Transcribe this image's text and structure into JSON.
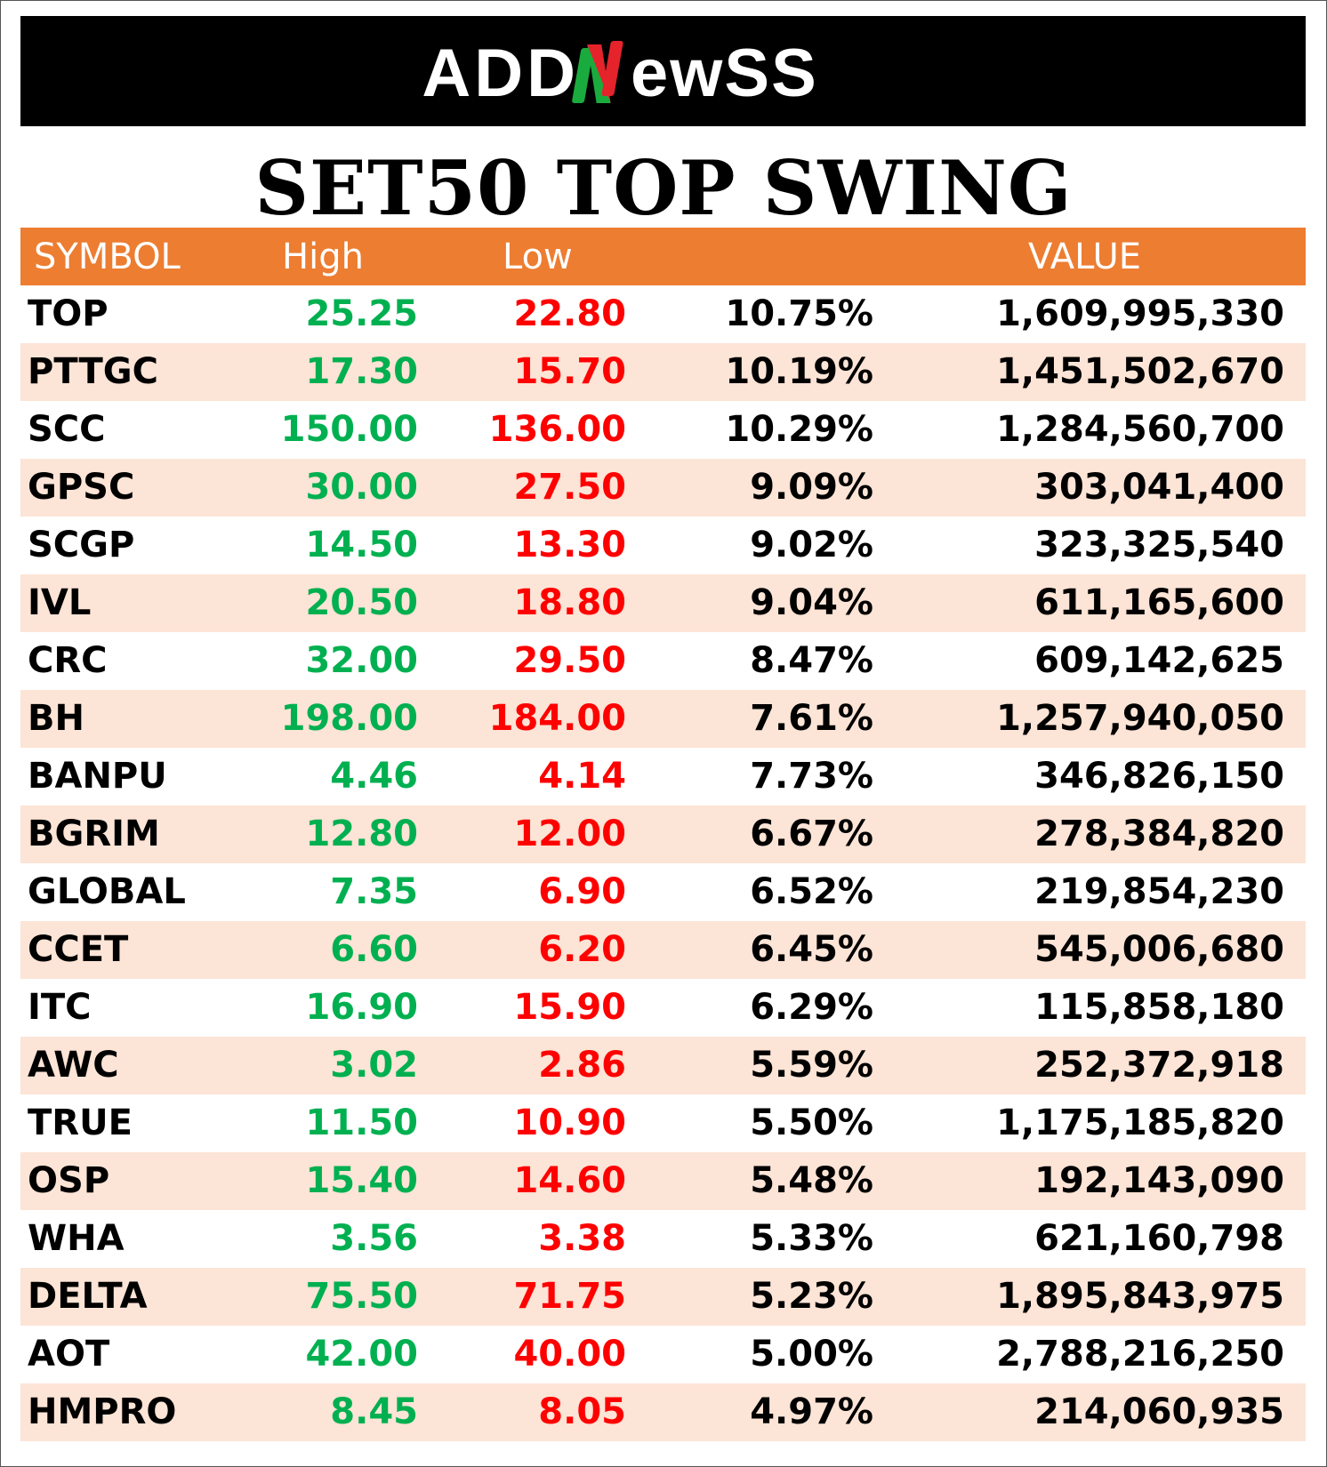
{
  "brand": {
    "left": "ADD",
    "right": "ewSS",
    "accent_colors": [
      "#1AAB3E",
      "#E5232B"
    ]
  },
  "title": "SET50 TOP SWING",
  "table": {
    "headers": {
      "symbol": "SYMBOL",
      "high": "High",
      "low": "Low",
      "pct": "",
      "value": "VALUE"
    },
    "colors": {
      "header_bg": "#ED7D31",
      "alt_row_bg": "#FCE4D6",
      "high": "#00B050",
      "low": "#FF0000"
    },
    "rows": [
      {
        "symbol": "TOP",
        "high": "25.25",
        "low": "22.80",
        "pct": "10.75%",
        "value": "1,609,995,330"
      },
      {
        "symbol": "PTTGC",
        "high": "17.30",
        "low": "15.70",
        "pct": "10.19%",
        "value": "1,451,502,670"
      },
      {
        "symbol": "SCC",
        "high": "150.00",
        "low": "136.00",
        "pct": "10.29%",
        "value": "1,284,560,700"
      },
      {
        "symbol": "GPSC",
        "high": "30.00",
        "low": "27.50",
        "pct": "9.09%",
        "value": "303,041,400"
      },
      {
        "symbol": "SCGP",
        "high": "14.50",
        "low": "13.30",
        "pct": "9.02%",
        "value": "323,325,540"
      },
      {
        "symbol": "IVL",
        "high": "20.50",
        "low": "18.80",
        "pct": "9.04%",
        "value": "611,165,600"
      },
      {
        "symbol": "CRC",
        "high": "32.00",
        "low": "29.50",
        "pct": "8.47%",
        "value": "609,142,625"
      },
      {
        "symbol": "BH",
        "high": "198.00",
        "low": "184.00",
        "pct": "7.61%",
        "value": "1,257,940,050"
      },
      {
        "symbol": "BANPU",
        "high": "4.46",
        "low": "4.14",
        "pct": "7.73%",
        "value": "346,826,150"
      },
      {
        "symbol": "BGRIM",
        "high": "12.80",
        "low": "12.00",
        "pct": "6.67%",
        "value": "278,384,820"
      },
      {
        "symbol": "GLOBAL",
        "high": "7.35",
        "low": "6.90",
        "pct": "6.52%",
        "value": "219,854,230"
      },
      {
        "symbol": "CCET",
        "high": "6.60",
        "low": "6.20",
        "pct": "6.45%",
        "value": "545,006,680"
      },
      {
        "symbol": "ITC",
        "high": "16.90",
        "low": "15.90",
        "pct": "6.29%",
        "value": "115,858,180"
      },
      {
        "symbol": "AWC",
        "high": "3.02",
        "low": "2.86",
        "pct": "5.59%",
        "value": "252,372,918"
      },
      {
        "symbol": "TRUE",
        "high": "11.50",
        "low": "10.90",
        "pct": "5.50%",
        "value": "1,175,185,820"
      },
      {
        "symbol": "OSP",
        "high": "15.40",
        "low": "14.60",
        "pct": "5.48%",
        "value": "192,143,090"
      },
      {
        "symbol": "WHA",
        "high": "3.56",
        "low": "3.38",
        "pct": "5.33%",
        "value": "621,160,798"
      },
      {
        "symbol": "DELTA",
        "high": "75.50",
        "low": "71.75",
        "pct": "5.23%",
        "value": "1,895,843,975"
      },
      {
        "symbol": "AOT",
        "high": "42.00",
        "low": "40.00",
        "pct": "5.00%",
        "value": "2,788,216,250"
      },
      {
        "symbol": "HMPRO",
        "high": "8.45",
        "low": "8.05",
        "pct": "4.97%",
        "value": "214,060,935"
      }
    ]
  }
}
